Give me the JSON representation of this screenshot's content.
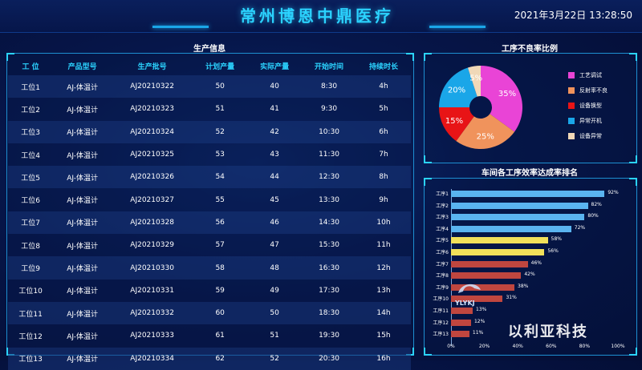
{
  "header": {
    "title": "常州博恩中鼎医疗",
    "datetime": "2021年3月22日 13:28:50"
  },
  "production": {
    "title": "生产信息",
    "columns": [
      "工 位",
      "产品型号",
      "生产批号",
      "计划产量",
      "实际产量",
      "开始时间",
      "持续时长"
    ],
    "rows": [
      [
        "工位1",
        "AJ-体温计",
        "AJ20210322",
        "50",
        "40",
        "8:30",
        "4h"
      ],
      [
        "工位2",
        "AJ-体温计",
        "AJ20210323",
        "51",
        "41",
        "9:30",
        "5h"
      ],
      [
        "工位3",
        "AJ-体温计",
        "AJ20210324",
        "52",
        "42",
        "10:30",
        "6h"
      ],
      [
        "工位4",
        "AJ-体温计",
        "AJ20210325",
        "53",
        "43",
        "11:30",
        "7h"
      ],
      [
        "工位5",
        "AJ-体温计",
        "AJ20210326",
        "54",
        "44",
        "12:30",
        "8h"
      ],
      [
        "工位6",
        "AJ-体温计",
        "AJ20210327",
        "55",
        "45",
        "13:30",
        "9h"
      ],
      [
        "工位7",
        "AJ-体温计",
        "AJ20210328",
        "56",
        "46",
        "14:30",
        "10h"
      ],
      [
        "工位8",
        "AJ-体温计",
        "AJ20210329",
        "57",
        "47",
        "15:30",
        "11h"
      ],
      [
        "工位9",
        "AJ-体温计",
        "AJ20210330",
        "58",
        "48",
        "16:30",
        "12h"
      ],
      [
        "工位10",
        "AJ-体温计",
        "AJ20210331",
        "59",
        "49",
        "17:30",
        "13h"
      ],
      [
        "工位11",
        "AJ-体温计",
        "AJ20210332",
        "60",
        "50",
        "18:30",
        "14h"
      ],
      [
        "工位12",
        "AJ-体温计",
        "AJ20210333",
        "61",
        "51",
        "19:30",
        "15h"
      ],
      [
        "工位13",
        "AJ-体温计",
        "AJ20210334",
        "62",
        "52",
        "20:30",
        "16h"
      ]
    ]
  },
  "chart_data": [
    {
      "type": "pie",
      "title": "工序不良率比例",
      "categories": [
        "工艺调试",
        "反射率不良",
        "设备换型",
        "异常开机",
        "设备异常"
      ],
      "values": [
        35,
        25,
        15,
        20,
        5
      ],
      "data_labels": [
        "35%",
        "25%",
        "15%",
        "20%",
        "5%"
      ],
      "colors": [
        "#e944d6",
        "#f0935c",
        "#e81416",
        "#1aa6e8",
        "#f0d8b8"
      ],
      "legend_position": "right"
    },
    {
      "type": "bar",
      "orientation": "horizontal",
      "title": "车间各工序效率达成率排名",
      "categories": [
        "工序1",
        "工序2",
        "工序3",
        "工序4",
        "工序5",
        "工序6",
        "工序7",
        "工序8",
        "工序9",
        "工序10",
        "工序11",
        "工序12",
        "工序13"
      ],
      "values": [
        92,
        82,
        80,
        72,
        58,
        56,
        46,
        42,
        38,
        31,
        13,
        12,
        11
      ],
      "data_labels": [
        "92%",
        "82%",
        "80%",
        "72%",
        "58%",
        "56%",
        "46%",
        "42%",
        "38%",
        "31%",
        "13%",
        "12%",
        "11%"
      ],
      "bar_colors": [
        "#5ab4f0",
        "#5ab4f0",
        "#5ab4f0",
        "#5ab4f0",
        "#f2e05a",
        "#f2e05a",
        "#c0463f",
        "#c0463f",
        "#c0463f",
        "#c0463f",
        "#c0463f",
        "#c0463f",
        "#c0463f"
      ],
      "xlim": [
        0,
        100
      ],
      "xtick_labels": [
        "0%",
        "20%",
        "40%",
        "60%",
        "80%",
        "100%"
      ]
    }
  ],
  "watermark": {
    "logo_text": "YLYKJ",
    "brand": "以利亚科技"
  }
}
